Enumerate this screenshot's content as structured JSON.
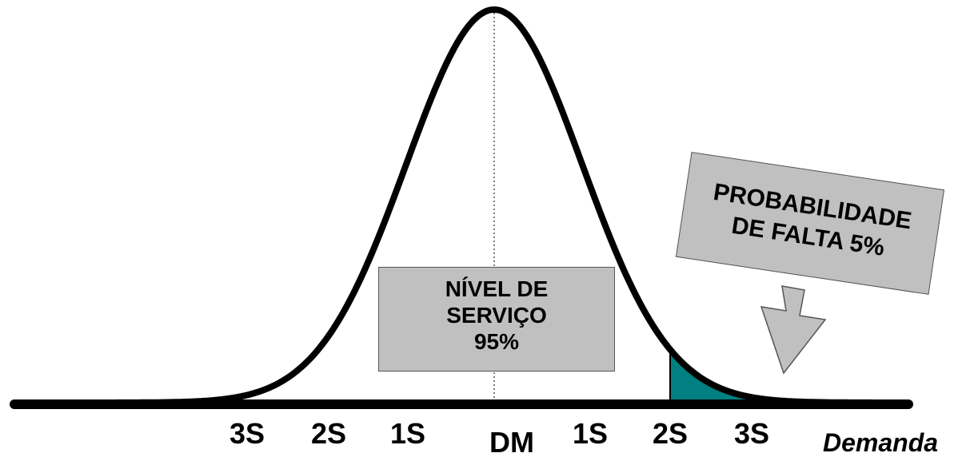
{
  "labels": {
    "left_3s": "3S",
    "left_2s": "2S",
    "left_1s": "1S",
    "mean": "DM",
    "right_1s": "1S",
    "right_2s": "2S",
    "right_3s": "3S",
    "axis_title": "Demanda"
  },
  "service_level": {
    "line1": "NÍVEL DE",
    "line2": "SERVIÇO",
    "line3": "95%"
  },
  "stockout": {
    "line1": "PROBABILIDADE",
    "line2": "DE FALTA 5%"
  },
  "colors": {
    "curve": "#000000",
    "tail_fill": "#008080",
    "box_fill": "#c0c0c0"
  }
}
